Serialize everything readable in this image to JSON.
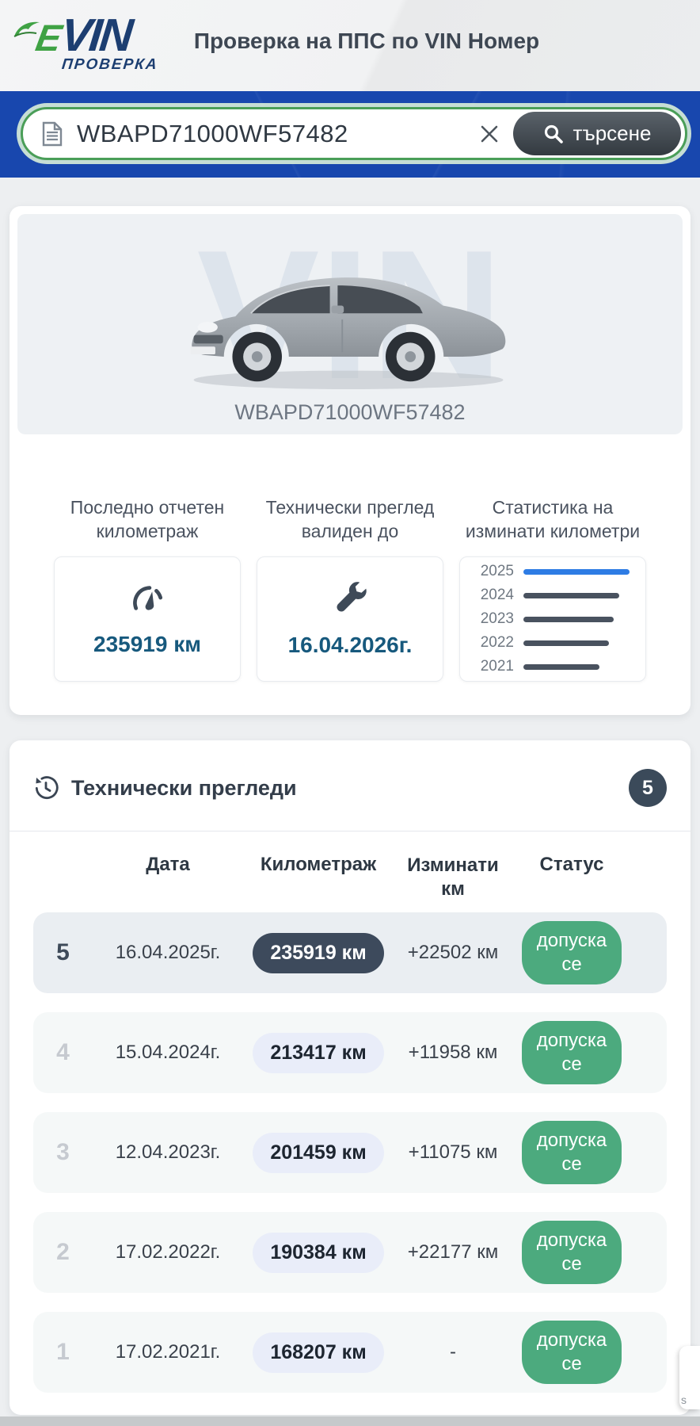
{
  "header": {
    "logo": {
      "e": "E",
      "vin": "VIN",
      "sub": "ПРОВЕРКА"
    },
    "title": "Проверка на ППС по VIN Номер"
  },
  "search": {
    "value": "WBAPD71000WF57482",
    "button_label": "търсене"
  },
  "vehicle": {
    "watermark": "VIN",
    "vin": "WBAPD71000WF57482"
  },
  "stats": {
    "odometer": {
      "title": "Последно отчетен километраж",
      "value": "235919 км"
    },
    "inspection": {
      "title": "Технически преглед валиден до",
      "value": "16.04.2026г."
    },
    "mileage_chart": {
      "title": "Статистика на изминати километри"
    }
  },
  "chart_data": {
    "type": "bar",
    "orientation": "horizontal",
    "title": "Статистика на изминати километри",
    "categories": [
      "2025",
      "2024",
      "2023",
      "2022",
      "2021"
    ],
    "values": [
      235919,
      213417,
      201459,
      190384,
      168207
    ],
    "unit": "км",
    "bar_colors": [
      "#2e7ce4",
      "#49525f",
      "#49525f",
      "#49525f",
      "#49525f"
    ],
    "legend": "off",
    "grid": "off"
  },
  "inspections": {
    "title": "Технически прегледи",
    "count": "5",
    "columns": [
      "Дата",
      "Километраж",
      "Изминати км",
      "Статус"
    ],
    "rows": [
      {
        "num": "5",
        "date": "16.04.2025г.",
        "km": "235919 км",
        "delta": "+22502 км",
        "status": "допуска се",
        "highlight": true
      },
      {
        "num": "4",
        "date": "15.04.2024г.",
        "km": "213417 км",
        "delta": "+11958 км",
        "status": "допуска се",
        "highlight": false
      },
      {
        "num": "3",
        "date": "12.04.2023г.",
        "km": "201459 км",
        "delta": "+11075 км",
        "status": "допуска се",
        "highlight": false
      },
      {
        "num": "2",
        "date": "17.02.2022г.",
        "km": "190384 км",
        "delta": "+22177 км",
        "status": "допуска се",
        "highlight": false
      },
      {
        "num": "1",
        "date": "17.02.2021г.",
        "km": "168207 км",
        "delta": "-",
        "status": "допуска се",
        "highlight": false
      }
    ]
  },
  "misc": {
    "side_widget_label": "s"
  },
  "colors": {
    "search_bg": "#1847ae",
    "pill_border_green": "#4a9e58",
    "accent_blue_bar": "#2e7ce4",
    "dark_slate": "#3b4a5a",
    "status_green": "#4caa7e",
    "value_blue": "#17597d"
  }
}
